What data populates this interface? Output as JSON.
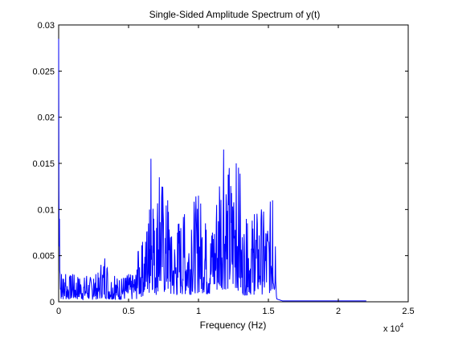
{
  "chart_data": {
    "type": "line",
    "title": "Single-Sided Amplitude Spectrum of y(t)",
    "xlabel": "Frequency (Hz)",
    "ylabel": "",
    "x_scale_label": "x 10",
    "x_scale_exponent": "4",
    "xlim": [
      0,
      2.5
    ],
    "ylim": [
      0,
      0.03
    ],
    "x_ticks": [
      {
        "value": 0,
        "label": "0"
      },
      {
        "value": 0.5,
        "label": "0.5"
      },
      {
        "value": 1,
        "label": "1"
      },
      {
        "value": 1.5,
        "label": "1.5"
      },
      {
        "value": 2,
        "label": "2"
      },
      {
        "value": 2.5,
        "label": "2.5"
      }
    ],
    "y_ticks": [
      {
        "value": 0,
        "label": "0"
      },
      {
        "value": 0.005,
        "label": "0.005"
      },
      {
        "value": 0.01,
        "label": "0.01"
      },
      {
        "value": 0.015,
        "label": "0.015"
      },
      {
        "value": 0.02,
        "label": "0.02"
      },
      {
        "value": 0.025,
        "label": "0.025"
      },
      {
        "value": 0.03,
        "label": "0.03"
      }
    ],
    "grid": false,
    "legend": "none",
    "line_color": "#0000ff",
    "series": [
      {
        "x": [
          0,
          0.002,
          0.004,
          0.006,
          0.01,
          0.015,
          0.02,
          0.03,
          0.05,
          0.08,
          0.1,
          0.15,
          0.2,
          0.25,
          0.3,
          0.33,
          0.35,
          0.4,
          0.45,
          0.5,
          0.53,
          0.56,
          0.57,
          0.6,
          0.63,
          0.65,
          0.66,
          0.68,
          0.7,
          0.72,
          0.75,
          0.78,
          0.8,
          0.85,
          0.9,
          0.95,
          1.0,
          1.05,
          1.1,
          1.13,
          1.15,
          1.18,
          1.2,
          1.22,
          1.25,
          1.27,
          1.3,
          1.35,
          1.4,
          1.45,
          1.5,
          1.53,
          1.55,
          1.56,
          1.6,
          1.8,
          2.0,
          2.2
        ],
        "y": [
          0.0285,
          0.012,
          0.006,
          0.009,
          0.003,
          0.0015,
          0.003,
          0.0025,
          0.003,
          0.0025,
          0.003,
          0.0025,
          0.0028,
          0.0025,
          0.0032,
          0.0047,
          0.003,
          0.0028,
          0.0025,
          0.003,
          0.0028,
          0.0035,
          0.0055,
          0.0065,
          0.0075,
          0.01,
          0.0155,
          0.009,
          0.008,
          0.0135,
          0.0085,
          0.011,
          0.007,
          0.0075,
          0.0095,
          0.0078,
          0.0115,
          0.0085,
          0.0075,
          0.0105,
          0.0125,
          0.0165,
          0.0105,
          0.0145,
          0.0095,
          0.015,
          0.009,
          0.0085,
          0.0095,
          0.01,
          0.0065,
          0.011,
          0.006,
          0.0003,
          0.0001,
          0.0001,
          0.0001,
          0.0001
        ]
      }
    ]
  }
}
